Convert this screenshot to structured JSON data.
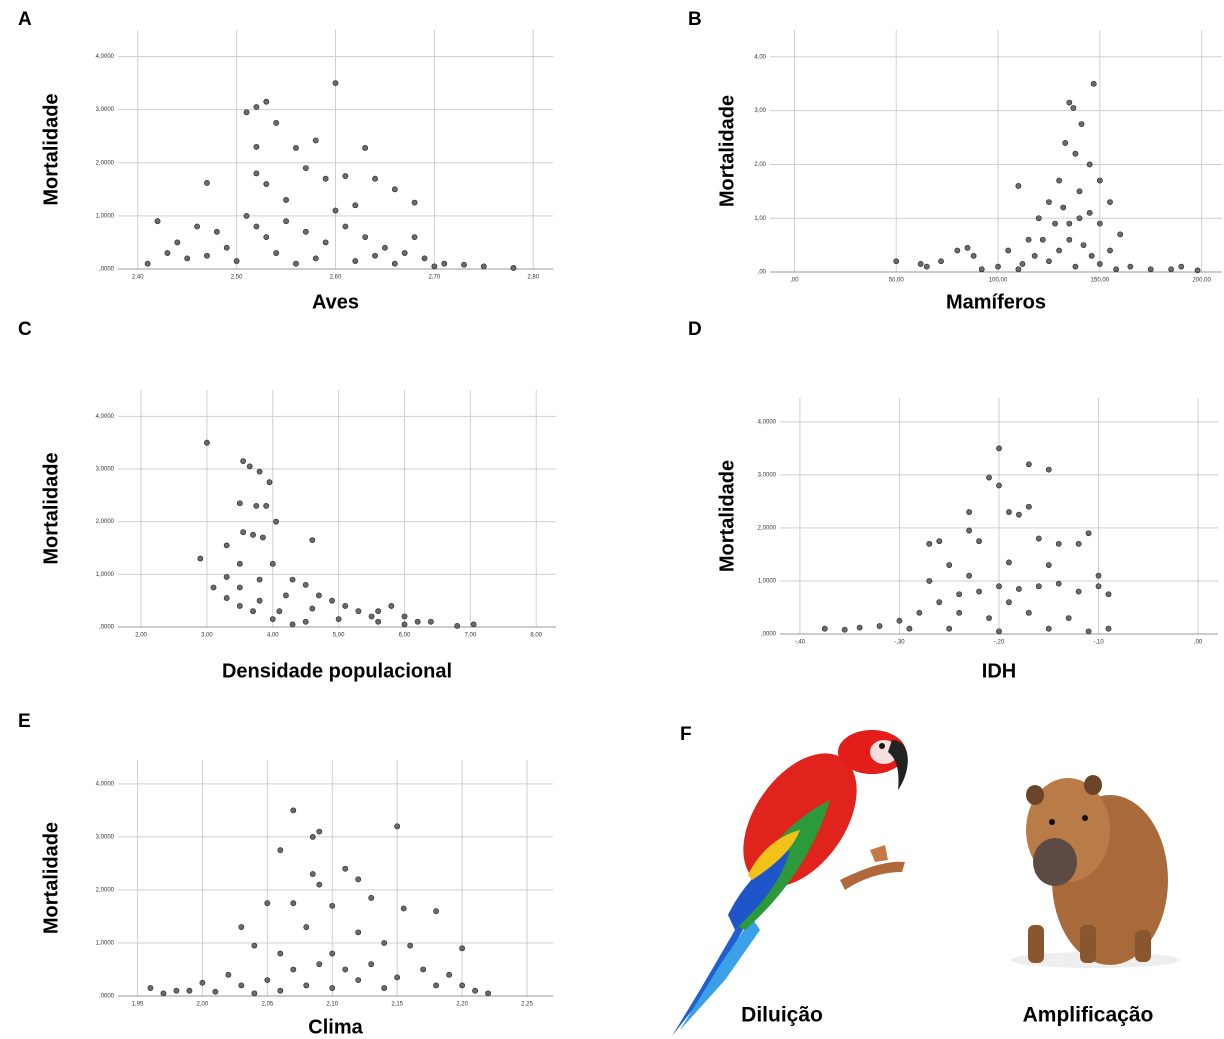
{
  "chart_data": [
    {
      "type": "scatter",
      "panel": "A",
      "xlabel": "Aves",
      "ylabel": "Mortalidade",
      "color": "#6b6b6b",
      "grid": true,
      "xlim": [
        2.38,
        2.82
      ],
      "ylim": [
        0,
        4.5
      ],
      "xticks": [
        {
          "value": 2.4,
          "label": "2,40"
        },
        {
          "value": 2.5,
          "label": "2,50"
        },
        {
          "value": 2.6,
          "label": "2,60"
        },
        {
          "value": 2.7,
          "label": "2,70"
        },
        {
          "value": 2.8,
          "label": "2,80"
        }
      ],
      "yticks": [
        {
          "value": 0,
          "label": ",0000"
        },
        {
          "value": 1,
          "label": "1,0000"
        },
        {
          "value": 2,
          "label": "2,0000"
        },
        {
          "value": 3,
          "label": "3,0000"
        },
        {
          "value": 4,
          "label": "4,0000"
        }
      ],
      "x": [
        2.6,
        2.53,
        2.52,
        2.51,
        2.54,
        2.58,
        2.63,
        2.56,
        2.52,
        2.47,
        2.57,
        2.61,
        2.64,
        2.59,
        2.66,
        2.53,
        2.52,
        2.55,
        2.68,
        2.42,
        2.46,
        2.48,
        2.44,
        2.43,
        2.45,
        2.41,
        2.49,
        2.51,
        2.52,
        2.53,
        2.55,
        2.57,
        2.59,
        2.61,
        2.63,
        2.65,
        2.67,
        2.69,
        2.71,
        2.73,
        2.75,
        2.78,
        2.54,
        2.56,
        2.58,
        2.62,
        2.64,
        2.66,
        2.7,
        2.6,
        2.62,
        2.5,
        2.47,
        2.68
      ],
      "y": [
        3.5,
        3.15,
        3.05,
        2.95,
        2.75,
        2.42,
        2.28,
        2.28,
        2.3,
        1.62,
        1.9,
        1.75,
        1.7,
        1.7,
        1.5,
        1.6,
        1.8,
        1.3,
        1.25,
        0.9,
        0.8,
        0.7,
        0.5,
        0.3,
        0.2,
        0.1,
        0.4,
        1.0,
        0.8,
        0.6,
        0.9,
        0.7,
        0.5,
        0.8,
        0.6,
        0.4,
        0.3,
        0.2,
        0.1,
        0.08,
        0.05,
        0.02,
        0.3,
        0.1,
        0.2,
        0.15,
        0.25,
        0.1,
        0.05,
        1.1,
        1.2,
        0.15,
        0.25,
        0.6
      ]
    },
    {
      "type": "scatter",
      "panel": "B",
      "xlabel": "Mamíferos",
      "ylabel": "Mortalidade",
      "color": "#6b6b6b",
      "grid": true,
      "xlim": [
        -12,
        210
      ],
      "ylim": [
        0,
        4.5
      ],
      "xticks": [
        {
          "value": 0,
          "label": ",00"
        },
        {
          "value": 50,
          "label": "50,00"
        },
        {
          "value": 100,
          "label": "100,00"
        },
        {
          "value": 150,
          "label": "150,00"
        },
        {
          "value": 200,
          "label": "200,00"
        }
      ],
      "yticks": [
        {
          "value": 0,
          "label": ",00"
        },
        {
          "value": 1,
          "label": "1,00"
        },
        {
          "value": 2,
          "label": "2,00"
        },
        {
          "value": 3,
          "label": "3,00"
        },
        {
          "value": 4,
          "label": "4,00"
        }
      ],
      "x": [
        147,
        135,
        137,
        141,
        133,
        138,
        145,
        110,
        130,
        150,
        140,
        125,
        155,
        132,
        145,
        120,
        128,
        150,
        160,
        115,
        135,
        142,
        105,
        118,
        125,
        138,
        150,
        158,
        165,
        175,
        185,
        190,
        198,
        50,
        62,
        65,
        72,
        80,
        85,
        88,
        92,
        100,
        110,
        122,
        130,
        146,
        112,
        155,
        135,
        140
      ],
      "y": [
        3.5,
        3.15,
        3.05,
        2.75,
        2.4,
        2.2,
        2.0,
        1.6,
        1.7,
        1.7,
        1.5,
        1.3,
        1.3,
        1.2,
        1.1,
        1.0,
        0.9,
        0.9,
        0.7,
        0.6,
        0.6,
        0.5,
        0.4,
        0.3,
        0.2,
        0.1,
        0.15,
        0.05,
        0.1,
        0.05,
        0.05,
        0.1,
        0.03,
        0.2,
        0.15,
        0.1,
        0.2,
        0.4,
        0.45,
        0.3,
        0.05,
        0.1,
        0.05,
        0.6,
        0.4,
        0.3,
        0.15,
        0.4,
        0.9,
        1.0
      ]
    },
    {
      "type": "scatter",
      "panel": "C",
      "xlabel": "Densidade populacional",
      "ylabel": "Mortalidade",
      "color": "#6b6b6b",
      "grid": true,
      "xlim": [
        1.65,
        8.3
      ],
      "ylim": [
        0,
        4.5
      ],
      "xticks": [
        {
          "value": 2,
          "label": "2,00"
        },
        {
          "value": 3,
          "label": "3,00"
        },
        {
          "value": 4,
          "label": "4,00"
        },
        {
          "value": 5,
          "label": "5,00"
        },
        {
          "value": 6,
          "label": "6,00"
        },
        {
          "value": 7,
          "label": "7,00"
        },
        {
          "value": 8,
          "label": "8,00"
        }
      ],
      "yticks": [
        {
          "value": 0,
          "label": ",0000"
        },
        {
          "value": 1,
          "label": "1,0000"
        },
        {
          "value": 2,
          "label": "2,0000"
        },
        {
          "value": 3,
          "label": "3,0000"
        },
        {
          "value": 4,
          "label": "4,0000"
        }
      ],
      "x": [
        3.0,
        3.55,
        3.65,
        3.8,
        3.95,
        3.5,
        3.75,
        3.9,
        4.05,
        2.9,
        3.3,
        3.55,
        3.7,
        3.85,
        4.6,
        3.1,
        3.3,
        3.5,
        3.7,
        4.0,
        4.3,
        3.3,
        3.5,
        3.8,
        4.1,
        4.5,
        3.5,
        3.8,
        4.2,
        4.6,
        5.0,
        4.0,
        4.3,
        4.7,
        5.1,
        5.5,
        5.8,
        6.0,
        6.2,
        6.4,
        5.3,
        5.6,
        6.0,
        6.8,
        7.05,
        4.5,
        4.9,
        5.6
      ],
      "y": [
        3.5,
        3.15,
        3.05,
        2.95,
        2.75,
        2.35,
        2.3,
        2.3,
        2.0,
        1.3,
        1.55,
        1.8,
        1.75,
        1.7,
        1.65,
        0.75,
        0.55,
        0.4,
        0.3,
        0.15,
        0.05,
        0.95,
        0.75,
        0.5,
        0.3,
        0.1,
        1.2,
        0.9,
        0.6,
        0.35,
        0.15,
        1.2,
        0.9,
        0.6,
        0.4,
        0.2,
        0.4,
        0.2,
        0.1,
        0.1,
        0.3,
        0.1,
        0.05,
        0.02,
        0.05,
        0.8,
        0.5,
        0.3
      ]
    },
    {
      "type": "scatter",
      "panel": "D",
      "xlabel": "IDH",
      "ylabel": "Mortalidade",
      "color": "#6b6b6b",
      "grid": true,
      "xlim": [
        -0.42,
        0.02
      ],
      "ylim": [
        0,
        4.45
      ],
      "xticks": [
        {
          "value": -0.4,
          "label": "-,40"
        },
        {
          "value": -0.3,
          "label": "-,30"
        },
        {
          "value": -0.2,
          "label": "-,20"
        },
        {
          "value": -0.1,
          "label": "-,10"
        },
        {
          "value": 0,
          "label": ",00"
        }
      ],
      "yticks": [
        {
          "value": 0,
          "label": ",0000"
        },
        {
          "value": 1,
          "label": "1,0000"
        },
        {
          "value": 2,
          "label": "2,0000"
        },
        {
          "value": 3,
          "label": "3,0000"
        },
        {
          "value": 4,
          "label": "4,0000"
        }
      ],
      "x": [
        -0.2,
        -0.17,
        -0.15,
        -0.21,
        -0.2,
        -0.19,
        -0.18,
        -0.17,
        -0.23,
        -0.23,
        -0.22,
        -0.26,
        -0.27,
        -0.16,
        -0.14,
        -0.12,
        -0.11,
        -0.15,
        -0.19,
        -0.25,
        -0.23,
        -0.27,
        -0.1,
        -0.1,
        -0.12,
        -0.14,
        -0.16,
        -0.18,
        -0.2,
        -0.22,
        -0.24,
        -0.26,
        -0.28,
        -0.3,
        -0.32,
        -0.34,
        -0.355,
        -0.375,
        -0.29,
        -0.25,
        -0.2,
        -0.15,
        -0.11,
        -0.09,
        -0.13,
        -0.17,
        -0.21,
        -0.09,
        -0.19,
        -0.24
      ],
      "y": [
        3.5,
        3.2,
        3.1,
        2.95,
        2.8,
        2.3,
        2.25,
        2.4,
        2.3,
        1.95,
        1.75,
        1.75,
        1.7,
        1.8,
        1.7,
        1.7,
        1.9,
        1.3,
        1.35,
        1.3,
        1.1,
        1.0,
        1.1,
        0.9,
        0.8,
        0.95,
        0.9,
        0.85,
        0.9,
        0.8,
        0.75,
        0.6,
        0.4,
        0.25,
        0.15,
        0.12,
        0.08,
        0.1,
        0.1,
        0.1,
        0.05,
        0.1,
        0.05,
        0.1,
        0.3,
        0.4,
        0.3,
        0.75,
        0.6,
        0.4
      ]
    },
    {
      "type": "scatter",
      "panel": "E",
      "xlabel": "Clima",
      "ylabel": "Mortalidade",
      "color": "#6b6b6b",
      "grid": true,
      "xlim": [
        1.935,
        2.27
      ],
      "ylim": [
        0,
        4.45
      ],
      "xticks": [
        {
          "value": 1.95,
          "label": "1,95"
        },
        {
          "value": 2.0,
          "label": "2,00"
        },
        {
          "value": 2.05,
          "label": "2,05"
        },
        {
          "value": 2.1,
          "label": "2,10"
        },
        {
          "value": 2.15,
          "label": "2,15"
        },
        {
          "value": 2.2,
          "label": "2,20"
        },
        {
          "value": 2.25,
          "label": "2,25"
        }
      ],
      "yticks": [
        {
          "value": 0,
          "label": ",0000"
        },
        {
          "value": 1,
          "label": "1,0000"
        },
        {
          "value": 2,
          "label": "2,0000"
        },
        {
          "value": 3,
          "label": "3,0000"
        },
        {
          "value": 4,
          "label": "4,0000"
        }
      ],
      "x": [
        2.07,
        2.09,
        2.085,
        2.15,
        2.06,
        2.085,
        2.11,
        2.12,
        2.09,
        2.13,
        2.07,
        2.05,
        2.1,
        2.155,
        2.18,
        2.03,
        2.08,
        2.12,
        2.14,
        2.2,
        2.04,
        2.16,
        2.06,
        2.1,
        2.13,
        2.17,
        2.19,
        2.02,
        2.0,
        1.98,
        1.96,
        1.97,
        1.99,
        2.01,
        2.03,
        2.05,
        2.07,
        2.09,
        2.11,
        2.15,
        2.18,
        2.21,
        2.22,
        2.2,
        2.12,
        2.1,
        2.14,
        2.06,
        2.08,
        2.04
      ],
      "y": [
        3.5,
        3.1,
        3.0,
        3.2,
        2.75,
        2.3,
        2.4,
        2.2,
        2.1,
        1.85,
        1.75,
        1.75,
        1.7,
        1.65,
        1.6,
        1.3,
        1.3,
        1.2,
        1.0,
        0.9,
        0.95,
        0.95,
        0.8,
        0.8,
        0.6,
        0.5,
        0.4,
        0.4,
        0.25,
        0.1,
        0.15,
        0.05,
        0.1,
        0.08,
        0.2,
        0.3,
        0.5,
        0.6,
        0.5,
        0.35,
        0.2,
        0.1,
        0.05,
        0.2,
        0.3,
        0.15,
        0.15,
        0.1,
        0.2,
        0.05
      ]
    }
  ],
  "panel_f": {
    "label": "F",
    "left_caption": "Diluição",
    "right_caption": "Amplificação"
  }
}
